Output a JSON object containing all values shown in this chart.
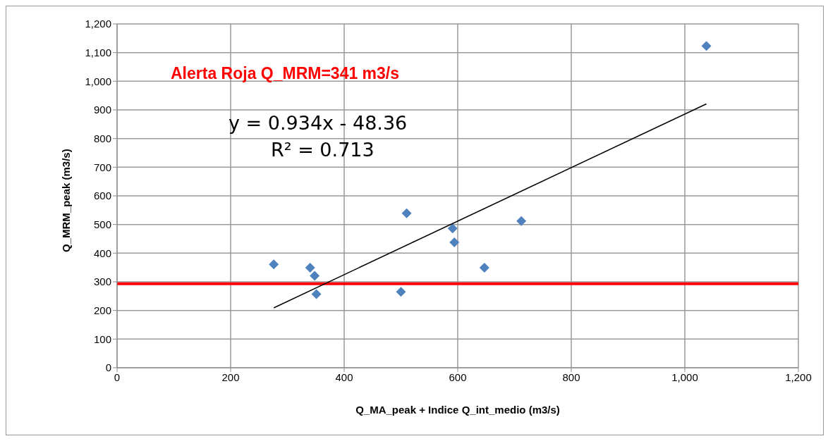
{
  "chart_data": {
    "type": "scatter",
    "xlabel": "Q_MA_peak + Indice Q_int_medio (m3/s)",
    "ylabel": "Q_MRM_peak (m3/s)",
    "series": [
      {
        "color": "#4f81bd",
        "marker": "diamond",
        "x": [
          276,
          340,
          348,
          351,
          500,
          510,
          591,
          594,
          647,
          712,
          1038
        ],
        "values": [
          361,
          349,
          321,
          257,
          265,
          539,
          486,
          438,
          349,
          512,
          1123
        ]
      },
      {
        "type": "line",
        "color": "#000000",
        "marker": "none",
        "x": [
          276,
          1038
        ],
        "values": [
          209,
          921
        ]
      }
    ],
    "xlim": [
      0,
      1200
    ],
    "xticks": [
      0,
      200,
      400,
      600,
      800,
      {
        "value": 1000,
        "label": "1,000"
      },
      {
        "value": 1200,
        "label": "1,200"
      }
    ],
    "ylim": [
      0,
      1200
    ],
    "yticks": [
      0,
      100,
      200,
      300,
      400,
      500,
      600,
      700,
      800,
      900,
      {
        "value": 1000,
        "label": "1,000"
      },
      {
        "value": 1100,
        "label": "1,100"
      },
      {
        "value": 1200,
        "label": "1,200"
      }
    ],
    "grid": true,
    "legend": false,
    "ref_lines": [
      {
        "axis": "y",
        "value": 293,
        "color": "#ff0000"
      }
    ],
    "annotations": [
      "Alerta Roja Q_MRM=341 m3/s",
      "y = 0.934x - 48.36",
      "R² = 0.713"
    ]
  }
}
